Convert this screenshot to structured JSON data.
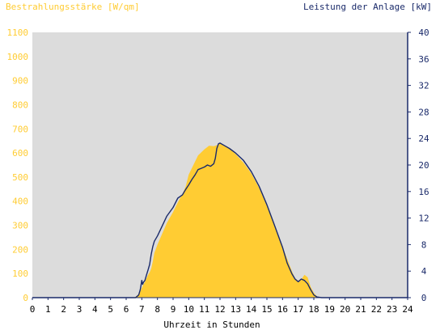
{
  "chart_data": {
    "type": "area",
    "title_left": "Bestrahlungsstärke [W/qm]",
    "title_right": "Leistung der Anlage [kW]",
    "xlabel": "Uhrzeit in Stunden",
    "xlim": [
      0,
      24
    ],
    "ylim_left": [
      0,
      1100
    ],
    "ylim_right": [
      0,
      40
    ],
    "x_ticks": [
      "0",
      "1",
      "2",
      "3",
      "4",
      "5",
      "6",
      "7",
      "8",
      "9",
      "10",
      "11",
      "12",
      "13",
      "14",
      "15",
      "16",
      "17",
      "18",
      "19",
      "20",
      "21",
      "22",
      "23",
      "24"
    ],
    "y_left_ticks": [
      "0",
      "100",
      "200",
      "300",
      "400",
      "500",
      "600",
      "700",
      "800",
      "900",
      "1000",
      "1100"
    ],
    "y_right_ticks": [
      "0",
      "4",
      "8",
      "12",
      "16",
      "20",
      "24",
      "28",
      "32",
      "36",
      "40"
    ],
    "colors": {
      "plot_bg": "#dcdcdc",
      "irradiance": "#ffcc33",
      "power": "#1a2a6a",
      "axis": "#1a2a6a"
    },
    "series": [
      {
        "name": "Bestrahlungsstärke",
        "axis": "left",
        "style": "area",
        "x": [
          0,
          6.5,
          6.7,
          6.9,
          7.0,
          7.1,
          7.2,
          7.3,
          7.4,
          7.5,
          7.6,
          7.7,
          7.8,
          8.0,
          8.3,
          8.6,
          9.0,
          9.3,
          9.6,
          9.8,
          10.0,
          10.3,
          10.6,
          11.0,
          11.3,
          11.6,
          11.8,
          12.0,
          12.3,
          12.6,
          13.0,
          13.5,
          14.0,
          14.5,
          15.0,
          15.5,
          16.0,
          16.3,
          16.6,
          16.8,
          17.0,
          17.2,
          17.4,
          17.6,
          17.8,
          18.0,
          18.2,
          18.5,
          24
        ],
        "y": [
          0,
          0,
          8,
          25,
          40,
          55,
          65,
          80,
          95,
          105,
          120,
          150,
          185,
          220,
          265,
          310,
          355,
          395,
          430,
          460,
          510,
          550,
          590,
          615,
          630,
          628,
          632,
          640,
          632,
          620,
          595,
          560,
          515,
          455,
          380,
          300,
          210,
          160,
          110,
          80,
          70,
          75,
          95,
          85,
          45,
          20,
          5,
          0,
          0
        ]
      },
      {
        "name": "Leistung der Anlage",
        "axis": "right",
        "style": "line",
        "x": [
          0,
          6.6,
          6.8,
          6.9,
          7.0,
          7.05,
          7.1,
          7.2,
          7.3,
          7.4,
          7.5,
          7.6,
          7.7,
          7.8,
          8.0,
          8.3,
          8.6,
          9.0,
          9.3,
          9.6,
          9.8,
          10.0,
          10.2,
          10.4,
          10.6,
          10.8,
          11.0,
          11.2,
          11.4,
          11.6,
          11.7,
          11.8,
          11.9,
          12.0,
          12.3,
          12.6,
          13.0,
          13.5,
          14.0,
          14.5,
          15.0,
          15.5,
          16.0,
          16.3,
          16.6,
          16.8,
          17.0,
          17.2,
          17.4,
          17.6,
          17.8,
          18.0,
          18.2,
          18.5,
          24
        ],
        "y": [
          0,
          0,
          0.4,
          1.2,
          2.6,
          2.0,
          2.3,
          2.6,
          3.4,
          4.2,
          5.0,
          6.5,
          7.7,
          8.5,
          9.3,
          10.8,
          12.3,
          13.6,
          15.0,
          15.5,
          16.3,
          17.0,
          17.8,
          18.5,
          19.3,
          19.5,
          19.7,
          20.0,
          19.8,
          20.2,
          21.0,
          22.5,
          23.2,
          23.3,
          22.9,
          22.5,
          21.8,
          20.7,
          19.0,
          16.8,
          14.0,
          10.8,
          7.6,
          5.2,
          3.6,
          2.8,
          2.4,
          2.8,
          2.6,
          2.1,
          1.2,
          0.4,
          0.1,
          0,
          0
        ]
      }
    ]
  }
}
